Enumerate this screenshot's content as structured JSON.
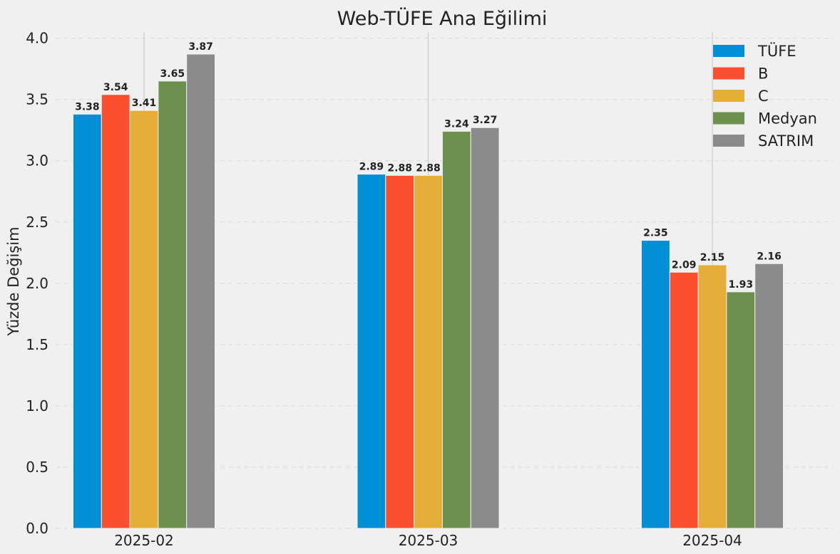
{
  "chart_data": {
    "type": "bar",
    "title": "Web-TÜFE Ana Eğilimi",
    "xlabel": "",
    "ylabel": "Yüzde Değişim",
    "ylim": [
      0,
      4.05
    ],
    "yticks": [
      "0.0",
      "0.5",
      "1.0",
      "1.5",
      "2.0",
      "2.5",
      "3.0",
      "3.5",
      "4.0"
    ],
    "categories": [
      "2025-02",
      "2025-03",
      "2025-04"
    ],
    "grid": true,
    "legend_position": "top-right",
    "series": [
      {
        "name": "TÜFE",
        "color": "#008fd5",
        "values": [
          3.38,
          2.89,
          2.35
        ],
        "labels": [
          "3.38",
          "2.89",
          "2.35"
        ]
      },
      {
        "name": "B",
        "color": "#fc4f30",
        "values": [
          3.54,
          2.88,
          2.09
        ],
        "labels": [
          "3.54",
          "2.88",
          "2.09"
        ]
      },
      {
        "name": "C",
        "color": "#e5ae38",
        "values": [
          3.41,
          2.88,
          2.15
        ],
        "labels": [
          "3.41",
          "2.88",
          "2.15"
        ]
      },
      {
        "name": "Medyan",
        "color": "#6d904f",
        "values": [
          3.65,
          3.24,
          1.93
        ],
        "labels": [
          "3.65",
          "3.24",
          "1.93"
        ]
      },
      {
        "name": "SATRIM",
        "color": "#8b8b8b",
        "values": [
          3.87,
          3.27,
          2.16
        ],
        "labels": [
          "3.87",
          "3.27",
          "2.16"
        ]
      }
    ]
  }
}
